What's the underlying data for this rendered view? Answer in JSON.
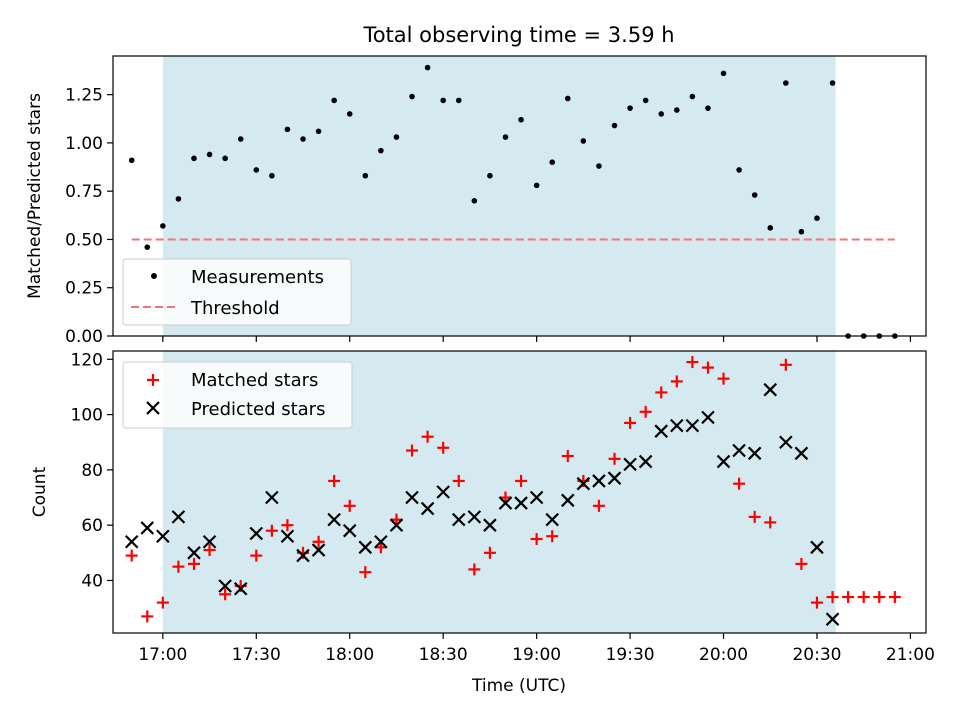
{
  "chart_data": [
    {
      "type": "scatter",
      "title": "Total observing time = 3.59 h",
      "ylabel": "Matched/Predicted stars",
      "xlabel": "",
      "xlim": [
        "16:44",
        "21:05"
      ],
      "ylim": [
        0,
        1.45
      ],
      "yticks": [
        0.0,
        0.25,
        0.5,
        0.75,
        1.0,
        1.25
      ],
      "ytick_labels": [
        "0.00",
        "0.25",
        "0.50",
        "0.75",
        "1.00",
        "1.25"
      ],
      "xticks": [
        "17:00",
        "17:30",
        "18:00",
        "18:30",
        "19:00",
        "19:30",
        "20:00",
        "20:30",
        "21:00"
      ],
      "shaded_interval": [
        "17:00",
        "20:36"
      ],
      "shade_color": "#d4eaf0",
      "legend_position": "lower left",
      "series": [
        {
          "name": "Measurements",
          "marker": "dot",
          "color": "#000000",
          "x": [
            "16:50",
            "16:55",
            "17:00",
            "17:05",
            "17:10",
            "17:15",
            "17:20",
            "17:25",
            "17:30",
            "17:35",
            "17:40",
            "17:45",
            "17:50",
            "17:55",
            "18:00",
            "18:05",
            "18:10",
            "18:15",
            "18:20",
            "18:25",
            "18:30",
            "18:35",
            "18:40",
            "18:45",
            "18:50",
            "18:55",
            "19:00",
            "19:05",
            "19:10",
            "19:15",
            "19:20",
            "19:25",
            "19:30",
            "19:35",
            "19:40",
            "19:45",
            "19:50",
            "19:55",
            "20:00",
            "20:05",
            "20:10",
            "20:15",
            "20:20",
            "20:25",
            "20:30",
            "20:35",
            "20:40",
            "20:45",
            "20:50",
            "20:55"
          ],
          "y": [
            0.91,
            0.46,
            0.57,
            0.71,
            0.92,
            0.94,
            0.92,
            1.02,
            0.86,
            0.83,
            1.07,
            1.02,
            1.06,
            1.22,
            1.15,
            0.83,
            0.96,
            1.03,
            1.24,
            1.39,
            1.22,
            1.22,
            0.7,
            0.83,
            1.03,
            1.12,
            0.78,
            0.9,
            1.23,
            1.01,
            0.88,
            1.09,
            1.18,
            1.22,
            1.15,
            1.17,
            1.24,
            1.18,
            1.36,
            0.86,
            0.73,
            0.56,
            1.31,
            0.54,
            0.61,
            1.31,
            0.0,
            0.0,
            0.0,
            0.0
          ]
        },
        {
          "name": "Threshold",
          "style": "dashed",
          "color": "#f07575",
          "x": [
            "16:50",
            "20:55"
          ],
          "y": [
            0.5,
            0.5
          ]
        }
      ]
    },
    {
      "type": "scatter",
      "title": "",
      "ylabel": "Count",
      "xlabel": "Time (UTC)",
      "xlim": [
        "16:44",
        "21:05"
      ],
      "ylim": [
        21,
        123
      ],
      "yticks": [
        40,
        60,
        80,
        100,
        120
      ],
      "ytick_labels": [
        "40",
        "60",
        "80",
        "100",
        "120"
      ],
      "xticks": [
        "17:00",
        "17:30",
        "18:00",
        "18:30",
        "19:00",
        "19:30",
        "20:00",
        "20:30",
        "21:00"
      ],
      "xtick_labels": [
        "17:00",
        "17:30",
        "18:00",
        "18:30",
        "19:00",
        "19:30",
        "20:00",
        "20:30",
        "21:00"
      ],
      "shaded_interval": [
        "17:00",
        "20:36"
      ],
      "shade_color": "#d4eaf0",
      "legend_position": "upper left",
      "series": [
        {
          "name": "Matched stars",
          "marker": "plus",
          "color": "#ff0000",
          "x": [
            "16:50",
            "16:55",
            "17:00",
            "17:05",
            "17:10",
            "17:15",
            "17:20",
            "17:25",
            "17:30",
            "17:35",
            "17:40",
            "17:45",
            "17:50",
            "17:55",
            "18:00",
            "18:05",
            "18:10",
            "18:15",
            "18:20",
            "18:25",
            "18:30",
            "18:35",
            "18:40",
            "18:45",
            "18:50",
            "18:55",
            "19:00",
            "19:05",
            "19:10",
            "19:15",
            "19:20",
            "19:25",
            "19:30",
            "19:35",
            "19:40",
            "19:45",
            "19:50",
            "19:55",
            "20:00",
            "20:05",
            "20:10",
            "20:15",
            "20:20",
            "20:25",
            "20:30",
            "20:35",
            "20:40",
            "20:45",
            "20:50",
            "20:55"
          ],
          "y": [
            49,
            27,
            32,
            45,
            46,
            51,
            35,
            38,
            49,
            58,
            60,
            50,
            54,
            76,
            67,
            43,
            52,
            62,
            87,
            92,
            88,
            76,
            44,
            50,
            70,
            76,
            55,
            56,
            85,
            76,
            67,
            84,
            97,
            101,
            108,
            112,
            119,
            117,
            113,
            75,
            63,
            61,
            118,
            46,
            32,
            34,
            34,
            34,
            34,
            34
          ]
        },
        {
          "name": "Predicted stars",
          "marker": "x",
          "color": "#000000",
          "x": [
            "16:50",
            "16:55",
            "17:00",
            "17:05",
            "17:10",
            "17:15",
            "17:20",
            "17:25",
            "17:30",
            "17:35",
            "17:40",
            "17:45",
            "17:50",
            "17:55",
            "18:00",
            "18:05",
            "18:10",
            "18:15",
            "18:20",
            "18:25",
            "18:30",
            "18:35",
            "18:40",
            "18:45",
            "18:50",
            "18:55",
            "19:00",
            "19:05",
            "19:10",
            "19:15",
            "19:20",
            "19:25",
            "19:30",
            "19:35",
            "19:40",
            "19:45",
            "19:50",
            "19:55",
            "20:00",
            "20:05",
            "20:10",
            "20:15",
            "20:20",
            "20:25",
            "20:30",
            "20:35"
          ],
          "y": [
            54,
            59,
            56,
            63,
            50,
            54,
            38,
            37,
            57,
            70,
            56,
            49,
            51,
            62,
            58,
            52,
            54,
            60,
            70,
            66,
            72,
            62,
            63,
            60,
            68,
            68,
            70,
            62,
            69,
            75,
            76,
            77,
            82,
            83,
            94,
            96,
            96,
            99,
            83,
            87,
            86,
            109,
            90,
            86,
            52,
            26
          ]
        }
      ]
    }
  ]
}
